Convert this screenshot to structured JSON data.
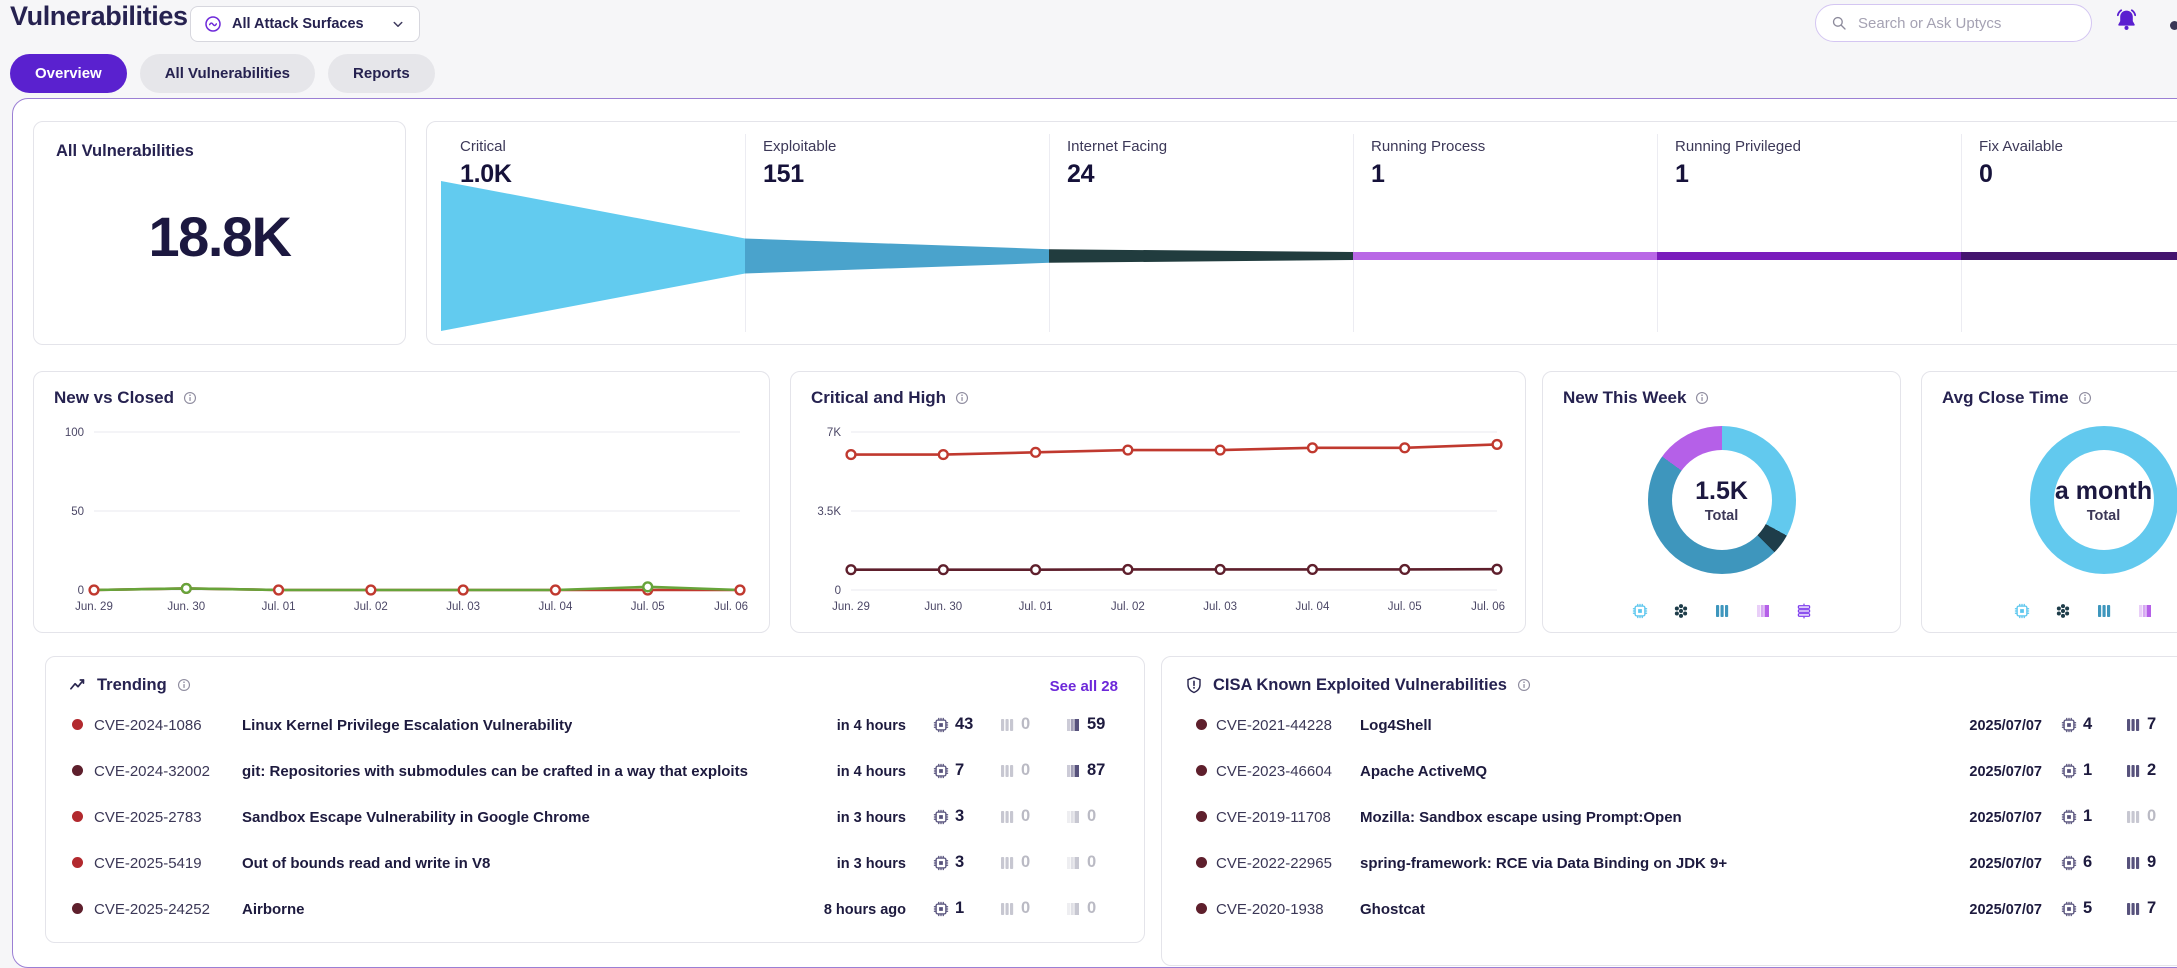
{
  "header": {
    "title": "Vulnerabilities",
    "attack_surface_selector": "All Attack Surfaces",
    "search_placeholder": "Search or Ask Uptycs",
    "tabs": [
      "Overview",
      "All Vulnerabilities",
      "Reports"
    ]
  },
  "summary": {
    "total": {
      "label": "All Vulnerabilities",
      "value": "18.8K"
    },
    "funnel": {
      "total_value": 18800,
      "stages": [
        {
          "label": "Critical",
          "display": "1.0K",
          "value": 1000,
          "color": "#62cbef"
        },
        {
          "label": "Exploitable",
          "display": "151",
          "value": 151,
          "color": "#4aa3cc"
        },
        {
          "label": "Internet Facing",
          "display": "24",
          "value": 24,
          "color": "#213c3e"
        },
        {
          "label": "Running Process",
          "display": "1",
          "value": 1,
          "color": "#b968e6"
        },
        {
          "label": "Running Privileged",
          "display": "1",
          "value": 1,
          "color": "#7a1cbc"
        },
        {
          "label": "Fix Available",
          "display": "0",
          "value": 0,
          "color": "#44146e"
        }
      ]
    }
  },
  "chart_data": [
    {
      "type": "line",
      "title": "New vs Closed",
      "x": [
        "Jun. 29",
        "Jun. 30",
        "Jul. 01",
        "Jul. 02",
        "Jul. 03",
        "Jul. 04",
        "Jul. 05",
        "Jul. 06"
      ],
      "series": [
        {
          "name": "New",
          "color": "#c0392f",
          "markers": "all",
          "values": [
            0,
            1,
            0,
            0,
            0,
            0,
            0,
            0
          ]
        },
        {
          "name": "Closed",
          "color": "#67a43a",
          "markers": "nonzero",
          "values": [
            0,
            1,
            0,
            0,
            0,
            0,
            2,
            0
          ]
        }
      ],
      "ylim": [
        0,
        100
      ],
      "yticks": [
        [
          0,
          "0"
        ],
        [
          50,
          "50"
        ],
        [
          100,
          "100"
        ]
      ],
      "grid": true,
      "legend": "none"
    },
    {
      "type": "line",
      "title": "Critical and High",
      "x": [
        "Jun. 29",
        "Jun. 30",
        "Jul. 01",
        "Jul. 02",
        "Jul. 03",
        "Jul. 04",
        "Jul. 05",
        "Jul. 06"
      ],
      "series": [
        {
          "name": "High",
          "color": "#c0392f",
          "markers": "all",
          "values": [
            6000,
            6000,
            6100,
            6200,
            6200,
            6300,
            6300,
            6450
          ]
        },
        {
          "name": "Critical",
          "color": "#5e1f2c",
          "markers": "all",
          "values": [
            900,
            900,
            900,
            910,
            910,
            910,
            910,
            920
          ]
        }
      ],
      "ylim": [
        0,
        7000
      ],
      "yticks": [
        [
          0,
          "0"
        ],
        [
          3500,
          "3.5K"
        ],
        [
          7000,
          "7K"
        ]
      ],
      "grid": true,
      "legend": "none"
    },
    {
      "type": "donut",
      "title": "New This Week",
      "center_value": "1.5K",
      "center_label": "Total",
      "segments": [
        {
          "name": "hosts",
          "color": "#62c9ee",
          "pct": 33
        },
        {
          "name": "clusters",
          "color": "#1e3d4a",
          "pct": 4.5
        },
        {
          "name": "containers",
          "color": "#3e96bd",
          "pct": 47.5
        },
        {
          "name": "images",
          "color": "#b560e8",
          "pct": 15
        }
      ]
    },
    {
      "type": "donut",
      "title": "Avg Close Time",
      "center_value": "a month",
      "center_label": "Total",
      "segments": [
        {
          "name": "all",
          "color": "#62c9ee",
          "pct": 100
        }
      ]
    }
  ],
  "trending": {
    "title": "Trending",
    "see_all": "See all 28",
    "rows": [
      {
        "severity": "high",
        "cve": "CVE-2024-1086",
        "name": "Linux Kernel Privilege Escalation Vulnerability",
        "when": "in 4 hours",
        "hosts": "43",
        "containers": "0",
        "images": "59"
      },
      {
        "severity": "critical",
        "cve": "CVE-2024-32002",
        "name": "git: Repositories with submodules can be crafted in a way that exploits",
        "when": "in 4 hours",
        "hosts": "7",
        "containers": "0",
        "images": "87"
      },
      {
        "severity": "high",
        "cve": "CVE-2025-2783",
        "name": "Sandbox Escape Vulnerability in Google Chrome",
        "when": "in 3 hours",
        "hosts": "3",
        "containers": "0",
        "images": "0"
      },
      {
        "severity": "high",
        "cve": "CVE-2025-5419",
        "name": "Out of bounds read and write in V8",
        "when": "in 3 hours",
        "hosts": "3",
        "containers": "0",
        "images": "0"
      },
      {
        "severity": "critical",
        "cve": "CVE-2025-24252",
        "name": "Airborne",
        "when": "8 hours ago",
        "hosts": "1",
        "containers": "0",
        "images": "0"
      }
    ]
  },
  "cisa": {
    "title": "CISA Known Exploited Vulnerabilities",
    "rows": [
      {
        "severity": "critical",
        "cve": "CVE-2021-44228",
        "name": "Log4Shell",
        "date": "2025/07/07",
        "hosts": "4",
        "containers": "7"
      },
      {
        "severity": "critical",
        "cve": "CVE-2023-46604",
        "name": "Apache ActiveMQ",
        "date": "2025/07/07",
        "hosts": "1",
        "containers": "2"
      },
      {
        "severity": "critical",
        "cve": "CVE-2019-11708",
        "name": "Mozilla: Sandbox escape using Prompt:Open",
        "date": "2025/07/07",
        "hosts": "1",
        "containers": "0"
      },
      {
        "severity": "critical",
        "cve": "CVE-2022-22965",
        "name": "spring-framework: RCE via Data Binding on JDK 9+",
        "date": "2025/07/07",
        "hosts": "6",
        "containers": "9"
      },
      {
        "severity": "critical",
        "cve": "CVE-2020-1938",
        "name": "Ghostcat",
        "date": "2025/07/07",
        "hosts": "5",
        "containers": "7"
      }
    ]
  }
}
